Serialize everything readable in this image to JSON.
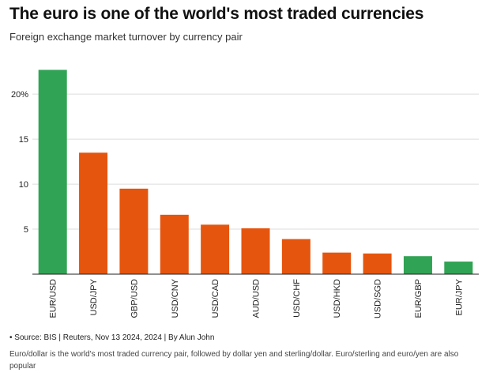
{
  "header": {
    "title": "The euro is one of the world's most traded currencies",
    "subtitle": "Foreign exchange market turnover by currency pair"
  },
  "chart_data": {
    "type": "bar",
    "title": "The euro is one of the world's most traded currencies",
    "subtitle": "Foreign exchange market turnover by currency pair",
    "xlabel": "",
    "ylabel": "",
    "categories": [
      "EUR/USD",
      "USD/JPY",
      "GBP/USD",
      "USD/CNY",
      "USD/CAD",
      "AUD/USD",
      "USD/CHF",
      "USD/HKD",
      "USD/SGD",
      "EUR/GBP",
      "EUR/JPY"
    ],
    "values": [
      22.7,
      13.5,
      9.5,
      6.6,
      5.5,
      5.1,
      3.9,
      2.4,
      2.3,
      2.0,
      1.4
    ],
    "bar_colors": [
      "#31a354",
      "#e6550d",
      "#e6550d",
      "#e6550d",
      "#e6550d",
      "#e6550d",
      "#e6550d",
      "#e6550d",
      "#e6550d",
      "#31a354",
      "#31a354"
    ],
    "ylim": [
      0,
      23
    ],
    "y_ticks": [
      {
        "value": 5,
        "label": "5"
      },
      {
        "value": 10,
        "label": "10"
      },
      {
        "value": 15,
        "label": "15"
      },
      {
        "value": 20,
        "label": "20%"
      }
    ],
    "grid": true,
    "gridline_color": "#dddddd",
    "axis_color": "#222222"
  },
  "footer": {
    "source": "• Source: BIS | Reuters, Nov 13 2024, 2024 | By Alun John",
    "caption": "Euro/dollar is the world's most traded currency pair, followed by dollar yen and sterling/dollar. Euro/sterling and euro/yen are also popular"
  }
}
